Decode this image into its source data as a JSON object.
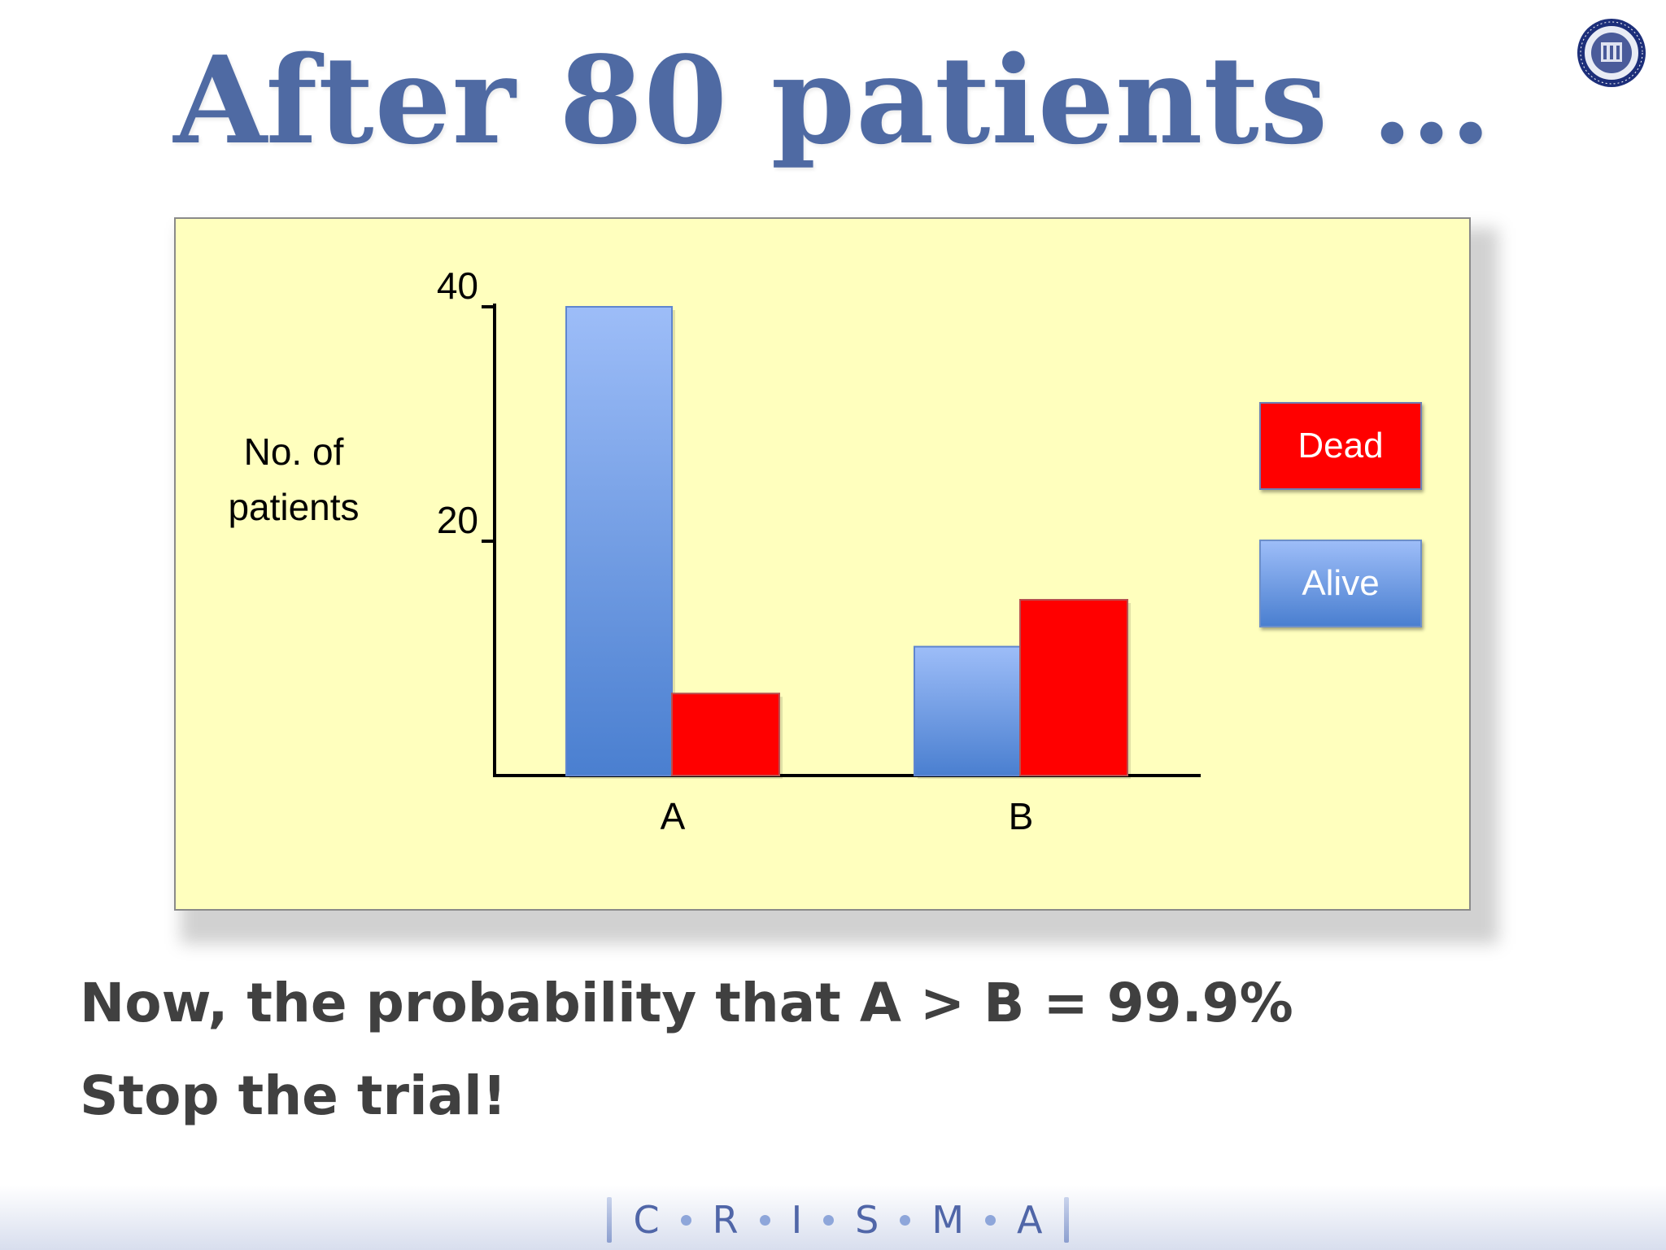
{
  "slide": {
    "title": "After 80 patients …",
    "statement_1": "Now, the probability that A > B = 99.9%",
    "statement_2": "Stop the trial!"
  },
  "footer": {
    "letters": [
      "C",
      "R",
      "I",
      "S",
      "M",
      "A"
    ]
  },
  "colors": {
    "title": "#4f6aa3",
    "panel_bg": "#ffffbe",
    "dead": "#ff0000",
    "alive_top": "#9dbdf8",
    "alive_bottom": "#4a7fd0",
    "text_dark": "#404040"
  },
  "chart_data": {
    "type": "bar",
    "categories": [
      "A",
      "B"
    ],
    "series": [
      {
        "name": "Alive",
        "values": [
          40,
          11
        ]
      },
      {
        "name": "Dead",
        "values": [
          7,
          15
        ]
      }
    ],
    "ylabel": "No. of patients",
    "xlabel": "",
    "yticks": [
      20,
      40
    ],
    "ylim": [
      0,
      40
    ],
    "legend": {
      "placement": "right",
      "items": [
        "Dead",
        "Alive"
      ]
    },
    "grid": false
  }
}
